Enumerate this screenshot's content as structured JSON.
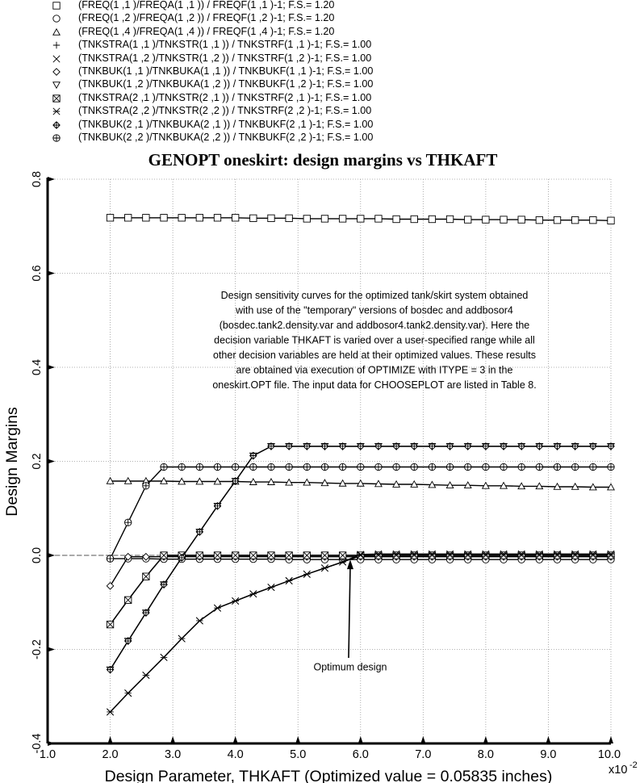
{
  "legend": [
    {
      "marker": "square",
      "text": "(FREQ(1 ,1 )/FREQA(1 ,1 )) / FREQF(1 ,1 )-1; F.S.=  1.20"
    },
    {
      "marker": "circle",
      "text": "(FREQ(1 ,2 )/FREQA(1 ,2 )) / FREQF(1 ,2 )-1; F.S.=  1.20"
    },
    {
      "marker": "triangle-up",
      "text": "(FREQ(1 ,4 )/FREQA(1 ,4 )) / FREQF(1 ,4 )-1; F.S.=  1.20"
    },
    {
      "marker": "plus",
      "text": "(TNKSTRA(1 ,1 )/TNKSTR(1 ,1 )) / TNKSTRF(1 ,1 )-1; F.S.=  1.00"
    },
    {
      "marker": "x",
      "text": "(TNKSTRA(1 ,2 )/TNKSTR(1 ,2 )) / TNKSTRF(1 ,2 )-1; F.S.=  1.00"
    },
    {
      "marker": "diamond",
      "text": "(TNKBUK(1 ,1 )/TNKBUKA(1 ,1 )) / TNKBUKF(1 ,1 )-1; F.S.=  1.00"
    },
    {
      "marker": "triangle-down",
      "text": "(TNKBUK(1 ,2 )/TNKBUKA(1 ,2 )) / TNKBUKF(1 ,2 )-1; F.S.=  1.00"
    },
    {
      "marker": "square-x",
      "text": "(TNKSTRA(2 ,1 )/TNKSTR(2 ,1 )) / TNKSTRF(2 ,1 )-1; F.S.=  1.00"
    },
    {
      "marker": "asterisk",
      "text": "(TNKSTRA(2 ,2 )/TNKSTR(2 ,2 )) / TNKSTRF(2 ,2 )-1; F.S.=  1.00"
    },
    {
      "marker": "circle-plus-diamond",
      "text": "(TNKBUK(2 ,1 )/TNKBUKA(2 ,1 )) / TNKBUKF(2 ,1 )-1; F.S.=  1.00"
    },
    {
      "marker": "circle-plus",
      "text": "(TNKBUK(2 ,2 )/TNKBUKA(2 ,2 )) / TNKBUKF(2 ,2 )-1; F.S.=  1.00"
    }
  ],
  "chart_data": {
    "type": "line",
    "title": "GENOPT oneskirt: design margins vs THKAFT",
    "xlabel": "Design Parameter, THKAFT (Optimized value = 0.05835 inches)",
    "ylabel": "Design Margins",
    "x_scale_label": "x10",
    "x_scale_exponent": "-2",
    "xlim": [
      1.0,
      10.0
    ],
    "ylim": [
      -0.4,
      0.8
    ],
    "x_ticks": [
      "1.0",
      "2.0",
      "3.0",
      "4.0",
      "5.0",
      "6.0",
      "7.0",
      "8.0",
      "9.0",
      "10.0"
    ],
    "y_ticks": [
      "-0.4",
      "-0.2",
      "0.0",
      "0.2",
      "0.4",
      "0.6",
      "0.8"
    ],
    "grid": true,
    "legend_position": "top, above plot",
    "x": [
      2.0,
      2.2857,
      2.5714,
      2.8571,
      3.1429,
      3.4286,
      3.7143,
      4.0,
      4.2857,
      4.5714,
      4.8571,
      5.1429,
      5.4286,
      5.7143,
      6.0,
      6.2857,
      6.5714,
      6.8571,
      7.1429,
      7.4286,
      7.7143,
      8.0,
      8.2857,
      8.5714,
      8.8571,
      9.1429,
      9.4286,
      9.7143,
      10.0
    ],
    "series": [
      {
        "name": "(FREQ(1 ,1 )/FREQA(1 ,1 )) / FREQF(1 ,1 )-1; F.S.=  1.20",
        "marker": "square",
        "values": [
          0.718,
          0.718,
          0.718,
          0.718,
          0.718,
          0.718,
          0.718,
          0.718,
          0.717,
          0.717,
          0.717,
          0.716,
          0.716,
          0.716,
          0.716,
          0.716,
          0.715,
          0.715,
          0.715,
          0.715,
          0.714,
          0.714,
          0.714,
          0.714,
          0.713,
          0.713,
          0.713,
          0.713,
          0.712
        ]
      },
      {
        "name": "(FREQ(1 ,2 )/FREQA(1 ,2 )) / FREQF(1 ,2 )-1; F.S.=  1.20",
        "marker": "circle",
        "values": [
          -0.007,
          -0.007,
          -0.007,
          -0.008,
          -0.008,
          -0.008,
          -0.008,
          -0.008,
          -0.008,
          -0.008,
          -0.009,
          -0.009,
          -0.009,
          -0.009,
          -0.009,
          -0.009,
          -0.009,
          -0.009,
          -0.009,
          -0.009,
          -0.009,
          -0.009,
          -0.009,
          -0.009,
          -0.009,
          -0.009,
          -0.009,
          -0.009,
          -0.009
        ]
      },
      {
        "name": "(FREQ(1 ,4 )/FREQA(1 ,4 )) / FREQF(1 ,4 )-1; F.S.=  1.20",
        "marker": "triangle-up",
        "values": [
          0.158,
          0.158,
          0.158,
          0.158,
          0.157,
          0.157,
          0.157,
          0.157,
          0.156,
          0.156,
          0.155,
          0.155,
          0.154,
          0.153,
          0.153,
          0.152,
          0.151,
          0.151,
          0.15,
          0.149,
          0.149,
          0.148,
          0.148,
          0.147,
          0.147,
          0.146,
          0.146,
          0.145,
          0.145
        ]
      },
      {
        "name": "(TNKSTRA(1 ,1 )/TNKSTR(1 ,1 )) / TNKSTRF(1 ,1 )-1; F.S.=  1.00",
        "marker": "plus",
        "values": [
          -0.147,
          -0.095,
          -0.045,
          0.0,
          0.0,
          0.0,
          0.0,
          0.0,
          0.0,
          0.0,
          0.0,
          0.0,
          0.0,
          0.0,
          0.0,
          0.0,
          0.0,
          0.0,
          0.0,
          0.0,
          0.0,
          0.0,
          0.0,
          0.0,
          0.0,
          0.0,
          0.0,
          0.0,
          0.0
        ]
      },
      {
        "name": "(TNKSTRA(1 ,2 )/TNKSTR(1 ,2 )) / TNKSTRF(1 ,2 )-1; F.S.=  1.00",
        "marker": "x",
        "values": [
          -0.333,
          -0.293,
          -0.255,
          -0.217,
          -0.177,
          -0.139,
          -0.112,
          -0.097,
          -0.082,
          -0.068,
          -0.054,
          -0.04,
          -0.027,
          -0.014,
          -0.001,
          0.0,
          0.0,
          0.0,
          0.0,
          0.0,
          0.0,
          0.0,
          0.0,
          0.0,
          0.0,
          0.0,
          0.0,
          0.0,
          0.0
        ]
      },
      {
        "name": "(TNKBUK(1 ,1 )/TNKBUKA(1 ,1 )) / TNKBUKF(1 ,1 )-1; F.S.=  1.00",
        "marker": "diamond",
        "values": [
          -0.065,
          -0.003,
          -0.003,
          -0.003,
          -0.003,
          -0.003,
          -0.003,
          -0.003,
          -0.003,
          -0.003,
          -0.003,
          -0.003,
          -0.003,
          -0.003,
          -0.003,
          -0.003,
          -0.003,
          -0.003,
          -0.003,
          -0.003,
          -0.003,
          -0.003,
          -0.003,
          -0.003,
          -0.003,
          -0.003,
          -0.003,
          -0.003,
          -0.003
        ]
      },
      {
        "name": "(TNKBUK(1 ,2 )/TNKBUKA(1 ,2 )) / TNKBUKF(1 ,2 )-1; F.S.=  1.00",
        "marker": "triangle-down",
        "values": [
          -0.243,
          -0.182,
          -0.122,
          -0.062,
          -0.005,
          0.05,
          0.105,
          0.158,
          0.212,
          0.232,
          0.232,
          0.232,
          0.232,
          0.232,
          0.232,
          0.232,
          0.232,
          0.232,
          0.232,
          0.232,
          0.232,
          0.232,
          0.232,
          0.232,
          0.232,
          0.232,
          0.232,
          0.232,
          0.232
        ]
      },
      {
        "name": "(TNKSTRA(2 ,1 )/TNKSTR(2 ,1 )) / TNKSTRF(2 ,1 )-1; F.S.=  1.00",
        "marker": "square-x",
        "values": [
          -0.147,
          -0.095,
          -0.045,
          0.0,
          0.0,
          0.0,
          0.0,
          0.0,
          0.0,
          0.0,
          0.0,
          0.0,
          0.0,
          0.0,
          0.0,
          0.0,
          0.0,
          0.0,
          0.0,
          0.0,
          0.0,
          0.0,
          0.0,
          0.0,
          0.0,
          0.0,
          0.0,
          0.0,
          0.0
        ]
      },
      {
        "name": "(TNKSTRA(2 ,2 )/TNKSTR(2 ,2 )) / TNKSTRF(2 ,2 )-1; F.S.=  1.00",
        "marker": "asterisk",
        "values": [
          -0.333,
          -0.293,
          -0.255,
          -0.217,
          -0.177,
          -0.139,
          -0.112,
          -0.097,
          -0.082,
          -0.068,
          -0.054,
          -0.04,
          -0.027,
          -0.014,
          0.002,
          0.003,
          0.003,
          0.003,
          0.003,
          0.003,
          0.003,
          0.003,
          0.003,
          0.003,
          0.003,
          0.003,
          0.003,
          0.003,
          0.003
        ]
      },
      {
        "name": "(TNKBUK(2 ,1 )/TNKBUKA(2 ,1 )) / TNKBUKF(2 ,1 )-1; F.S.=  1.00",
        "marker": "circle-plus-diamond",
        "values": [
          -0.243,
          -0.182,
          -0.122,
          -0.062,
          -0.005,
          0.05,
          0.105,
          0.158,
          0.212,
          0.232,
          0.232,
          0.232,
          0.232,
          0.232,
          0.232,
          0.232,
          0.232,
          0.232,
          0.232,
          0.232,
          0.232,
          0.232,
          0.232,
          0.232,
          0.232,
          0.232,
          0.232,
          0.232,
          0.232
        ]
      },
      {
        "name": "(TNKBUK(2 ,2 )/TNKBUKA(2 ,2 )) / TNKBUKF(2 ,2 )-1; F.S.=  1.00",
        "marker": "circle-plus",
        "values": [
          -0.007,
          0.07,
          0.148,
          0.188,
          0.188,
          0.188,
          0.188,
          0.188,
          0.188,
          0.188,
          0.188,
          0.188,
          0.188,
          0.188,
          0.188,
          0.188,
          0.188,
          0.188,
          0.188,
          0.188,
          0.188,
          0.188,
          0.188,
          0.188,
          0.188,
          0.188,
          0.188,
          0.188,
          0.188
        ]
      }
    ],
    "annotations": {
      "description": [
        "Design sensitivity curves for the optimized tank/skirt system obtained",
        "with use of the \"temporary\" versions of bosdec and addbosor4",
        "(bosdec.tank2.density.var and addbosor4.tank2.density.var). Here the",
        "decision variable THKAFT is varied over a user-specified range while all",
        "other decision variables are held at their optimized values. These results",
        "are obtained via execution of OPTIMIZE with ITYPE = 3 in the",
        "oneskirt.OPT file. The input data for CHOOSEPLOT are listed in Table 8."
      ],
      "optimum_label": "Optimum design",
      "optimum_x": 5.835,
      "optimum_y": -0.002
    }
  }
}
